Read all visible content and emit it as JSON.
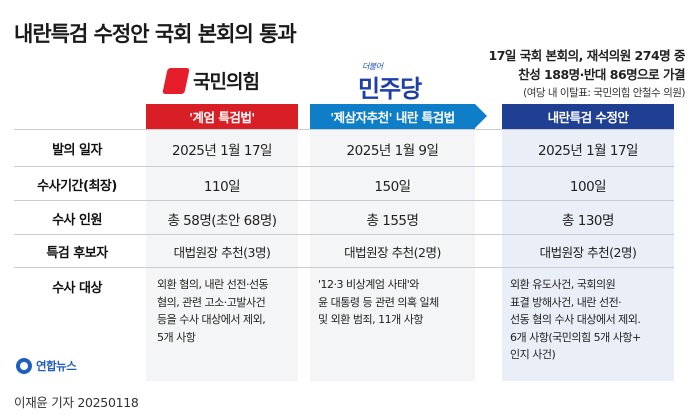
{
  "title": "내란특검 수정안 국회 본회의 통과",
  "vote": {
    "line1": "17일 국회 본회의, 재석의원 274명 중",
    "line2": "찬성 188명·반대 86명으로 가결",
    "note": "(여당 내 이탈표: 국민의힘 안철수 의원)"
  },
  "parties": {
    "ppp_logo": "국민의힘",
    "dp_logo_small": "더불어",
    "dp_logo": "민주당"
  },
  "columns": {
    "ppp": "'계엄 특검법'",
    "dp": "'제삼자추천' 내란 특검법",
    "final": "내란특검 수정안"
  },
  "rows": [
    {
      "label": "발의 일자",
      "ppp": "2025년 1월 17일",
      "dp": "2025년 1월 9일",
      "final": "2025년 1월 17일"
    },
    {
      "label": "수사기간(최장)",
      "ppp": "110일",
      "dp": "150일",
      "final": "100일"
    },
    {
      "label": "수사 인원",
      "ppp": "총 58명(초안 68명)",
      "dp": "총 155명",
      "final": "총 130명"
    },
    {
      "label": "특검 후보자",
      "ppp": "대법원장 추천(3명)",
      "dp": "대법원장 추천(2명)",
      "final": "대법원장 추천(2명)"
    },
    {
      "label": "수사 대상",
      "ppp": "외환 혐의, 내란 선전·선동\n혐의, 관련 고소·고발사건\n등을 수사 대상에서 제외,\n5개 사항",
      "dp": "'12·3 비상계엄 사태'와\n윤 대통령 등 관련 의혹 일체\n및 외환 범죄, 11개 사항",
      "final": "외환 유도사건, 국회의원\n표결 방해사건, 내란 선전·\n선동 혐의 수사 대상에서 제외.\n6개 사항(국민의힘 5개 사항+\n인지 사건)"
    }
  ],
  "footer": {
    "agency": "연합뉴스",
    "credit": "이재윤 기자  20250118"
  },
  "colors": {
    "ppp": "#d91f26",
    "dp": "#0f7ec8",
    "final": "#1f3f93"
  }
}
